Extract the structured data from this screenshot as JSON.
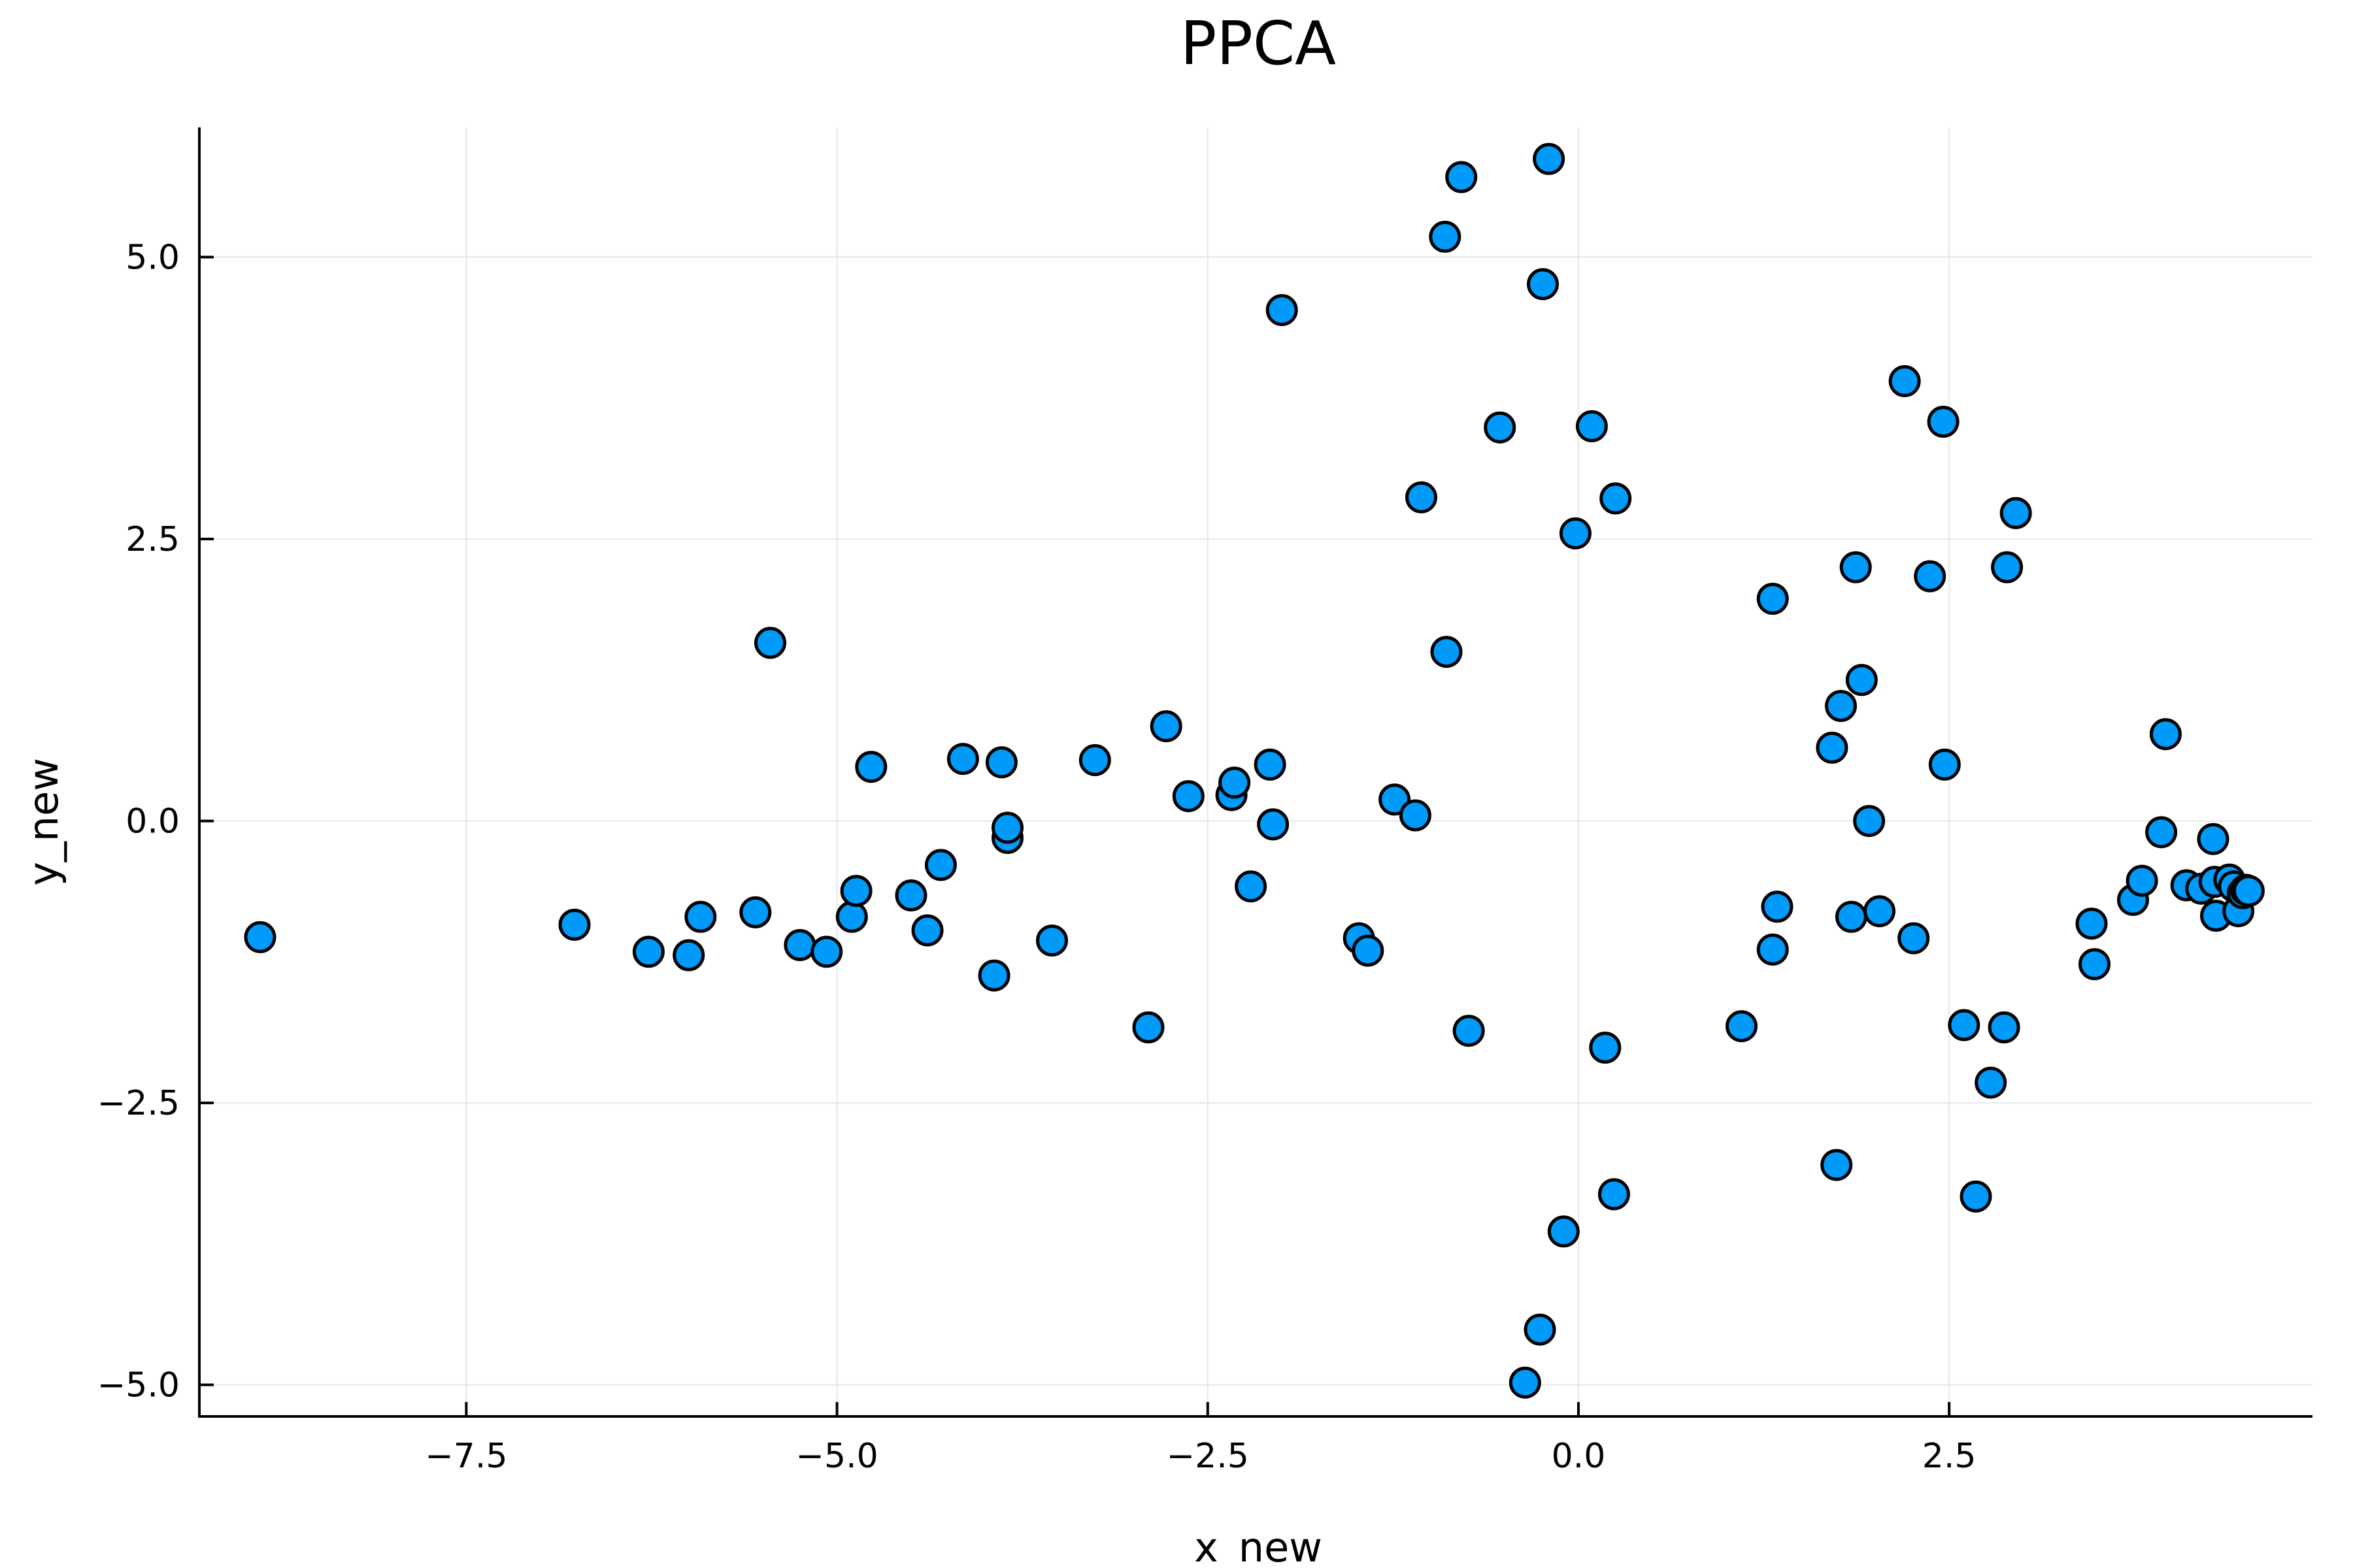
{
  "chart_data": {
    "type": "scatter",
    "title": "PPCA",
    "xlabel": "x_new",
    "ylabel": "y_new",
    "xlim": [
      -9.3,
      4.95
    ],
    "ylim": [
      -5.28,
      6.15
    ],
    "xticks": [
      -7.5,
      -5.0,
      -2.5,
      0.0,
      2.5
    ],
    "xtick_labels": [
      "−7.5",
      "−5.0",
      "−2.5",
      "0.0",
      "2.5"
    ],
    "yticks": [
      -5.0,
      -2.5,
      0.0,
      2.5,
      5.0
    ],
    "ytick_labels": [
      "−5.0",
      "−2.5",
      "0.0",
      "2.5",
      "5.0"
    ],
    "grid": true,
    "legend": "none",
    "marker_color": "#009AFA",
    "marker_edge_color": "#000000",
    "series": [
      {
        "points": [
          [
            -8.89,
            -1.03
          ],
          [
            -6.77,
            -0.92
          ],
          [
            -6.27,
            -1.16
          ],
          [
            -6.0,
            -1.19
          ],
          [
            -5.92,
            -0.85
          ],
          [
            -5.55,
            -0.81
          ],
          [
            -5.45,
            1.58
          ],
          [
            -5.25,
            -1.1
          ],
          [
            -5.07,
            -1.16
          ],
          [
            -4.9,
            -0.85
          ],
          [
            -4.87,
            -0.62
          ],
          [
            -4.77,
            0.48
          ],
          [
            -4.5,
            -0.66
          ],
          [
            -4.39,
            -0.97
          ],
          [
            -4.3,
            -0.39
          ],
          [
            -4.15,
            0.55
          ],
          [
            -3.94,
            -1.37
          ],
          [
            -3.89,
            0.52
          ],
          [
            -3.85,
            -0.15
          ],
          [
            -3.85,
            -0.06
          ],
          [
            -3.55,
            -1.06
          ],
          [
            -3.26,
            0.54
          ],
          [
            -2.9,
            -1.83
          ],
          [
            -2.78,
            0.84
          ],
          [
            -2.63,
            0.22
          ],
          [
            -2.34,
            0.23
          ],
          [
            -2.32,
            0.34
          ],
          [
            -2.21,
            -0.58
          ],
          [
            -2.08,
            0.5
          ],
          [
            -2.06,
            -0.03
          ],
          [
            -2.0,
            4.53
          ],
          [
            -1.48,
            -1.04
          ],
          [
            -1.42,
            -1.15
          ],
          [
            -1.24,
            0.19
          ],
          [
            -1.1,
            0.05
          ],
          [
            -1.06,
            2.87
          ],
          [
            -0.9,
            5.18
          ],
          [
            -0.89,
            1.5
          ],
          [
            -0.79,
            5.71
          ],
          [
            -0.74,
            -1.86
          ],
          [
            -0.53,
            3.49
          ],
          [
            -0.36,
            -4.98
          ],
          [
            -0.26,
            -4.51
          ],
          [
            -0.24,
            4.76
          ],
          [
            -0.2,
            5.87
          ],
          [
            -0.1,
            -3.64
          ],
          [
            -0.02,
            2.55
          ],
          [
            0.09,
            3.5
          ],
          [
            0.18,
            -2.01
          ],
          [
            0.24,
            -3.31
          ],
          [
            0.25,
            2.86
          ],
          [
            1.1,
            -1.82
          ],
          [
            1.31,
            1.97
          ],
          [
            1.31,
            -1.14
          ],
          [
            1.34,
            -0.76
          ],
          [
            1.71,
            0.65
          ],
          [
            1.74,
            -3.05
          ],
          [
            1.77,
            1.02
          ],
          [
            1.84,
            -0.85
          ],
          [
            1.87,
            2.25
          ],
          [
            1.91,
            1.25
          ],
          [
            1.96,
            0.0
          ],
          [
            2.03,
            -0.8
          ],
          [
            2.2,
            3.9
          ],
          [
            2.26,
            -1.04
          ],
          [
            2.37,
            2.17
          ],
          [
            2.46,
            3.54
          ],
          [
            2.47,
            0.5
          ],
          [
            2.6,
            -1.81
          ],
          [
            2.68,
            -3.33
          ],
          [
            2.78,
            -2.32
          ],
          [
            2.87,
            -1.83
          ],
          [
            2.89,
            2.25
          ],
          [
            2.95,
            2.73
          ],
          [
            3.46,
            -0.91
          ],
          [
            3.48,
            -1.27
          ],
          [
            3.74,
            -0.7
          ],
          [
            3.8,
            -0.53
          ],
          [
            3.93,
            -0.1
          ],
          [
            3.96,
            0.77
          ],
          [
            4.1,
            -0.57
          ],
          [
            4.2,
            -0.6
          ],
          [
            4.28,
            -0.16
          ],
          [
            4.29,
            -0.54
          ],
          [
            4.3,
            -0.84
          ],
          [
            4.39,
            -0.52
          ],
          [
            4.42,
            -0.58
          ],
          [
            4.45,
            -0.8
          ],
          [
            4.48,
            -0.64
          ],
          [
            4.5,
            -0.61
          ],
          [
            4.52,
            -0.62
          ]
        ]
      }
    ]
  }
}
